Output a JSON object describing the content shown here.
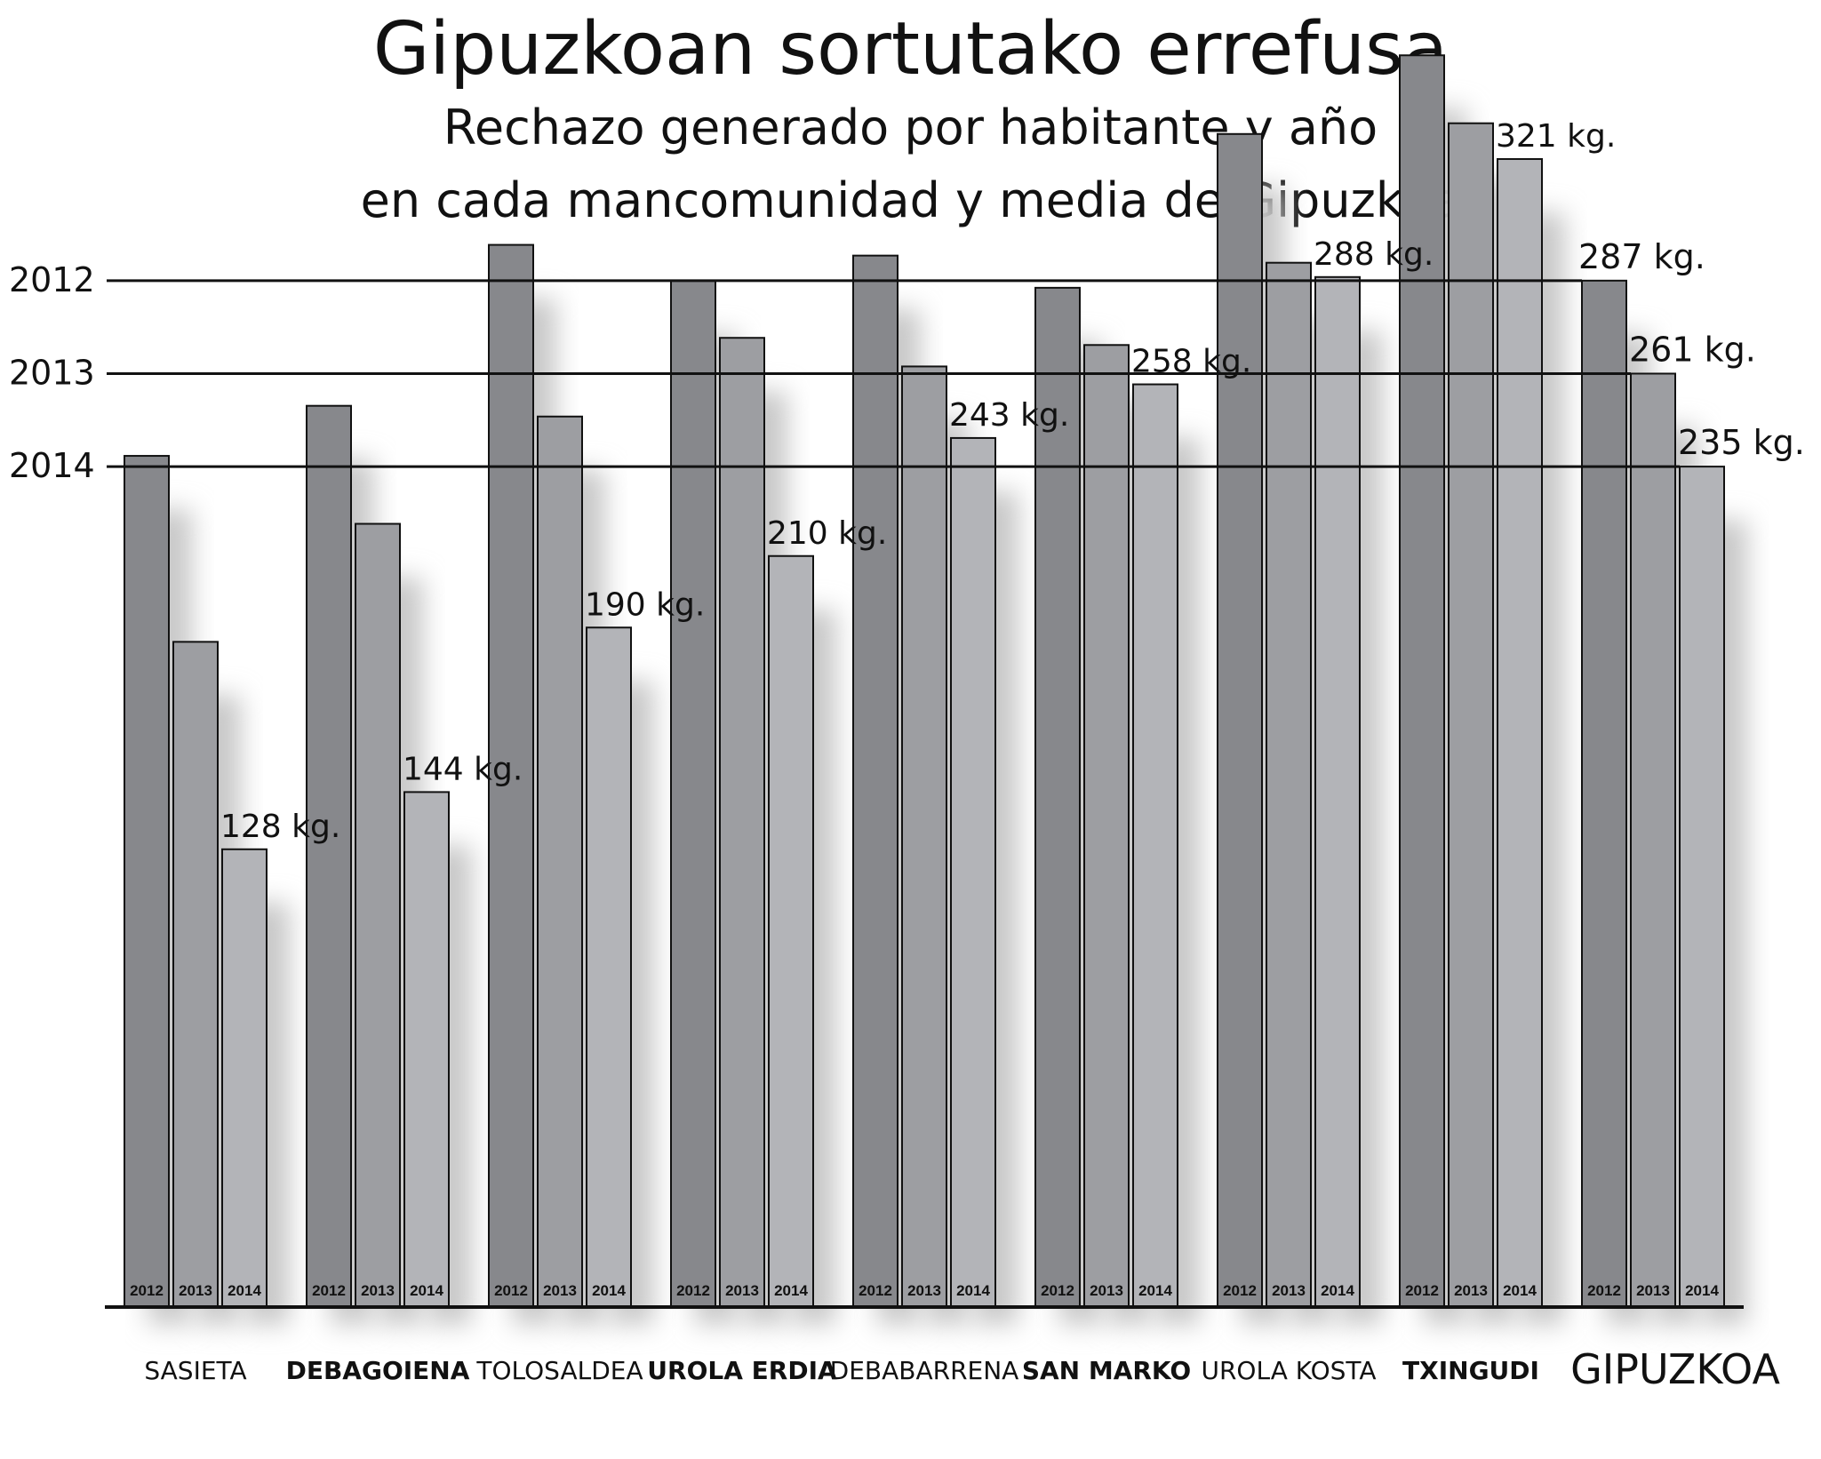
{
  "title": "Gipuzkoan sortutako errefusa",
  "subtitle_lines": [
    "Rechazo generado por habitante y año",
    "en cada mancomunidad y media de Gipuzkoa"
  ],
  "colors": {
    "2012": "#87888c",
    "2013": "#9d9ea2",
    "2014": "#b3b4b8",
    "outline": "#111111",
    "shadow": "#c8c8c8"
  },
  "chart_data": {
    "type": "bar",
    "title": "Gipuzkoan sortutako errefusa",
    "subtitle": "Rechazo generado por habitante y año en cada mancomunidad y media de Gipuzkoa",
    "categories": [
      "SASIETA",
      "DEBAGOIENA",
      "TOLOSALDEA",
      "UROLA ERDIA",
      "DEBABARRENA",
      "SAN MARKO",
      "UROLA KOSTA",
      "TXINGUDI",
      "GIPUZKOA"
    ],
    "category_bold": [
      false,
      true,
      false,
      true,
      false,
      true,
      false,
      true,
      false
    ],
    "series": [
      {
        "name": "2012",
        "values": [
          238,
          252,
          297,
          287,
          294,
          285,
          328,
          350,
          287
        ]
      },
      {
        "name": "2013",
        "values": [
          186,
          219,
          249,
          271,
          263,
          269,
          292,
          331,
          261
        ]
      },
      {
        "name": "2014",
        "values": [
          128,
          144,
          190,
          210,
          243,
          258,
          288,
          321,
          235
        ]
      }
    ],
    "data_labels": [
      "128 kg.",
      "144 kg.",
      "190 kg.",
      "210 kg.",
      "243 kg.",
      "258 kg.",
      "288 kg.",
      "321 kg.",
      "235 kg."
    ],
    "gipuzkoa_labels": [
      "287 kg.",
      "261 kg.",
      "235 kg."
    ],
    "reference_lines": [
      {
        "label": "2012",
        "value": 287
      },
      {
        "label": "2013",
        "value": 261
      },
      {
        "label": "2014",
        "value": 235
      }
    ],
    "ylim": [
      0,
      350
    ],
    "xlabel": "",
    "ylabel": ""
  }
}
